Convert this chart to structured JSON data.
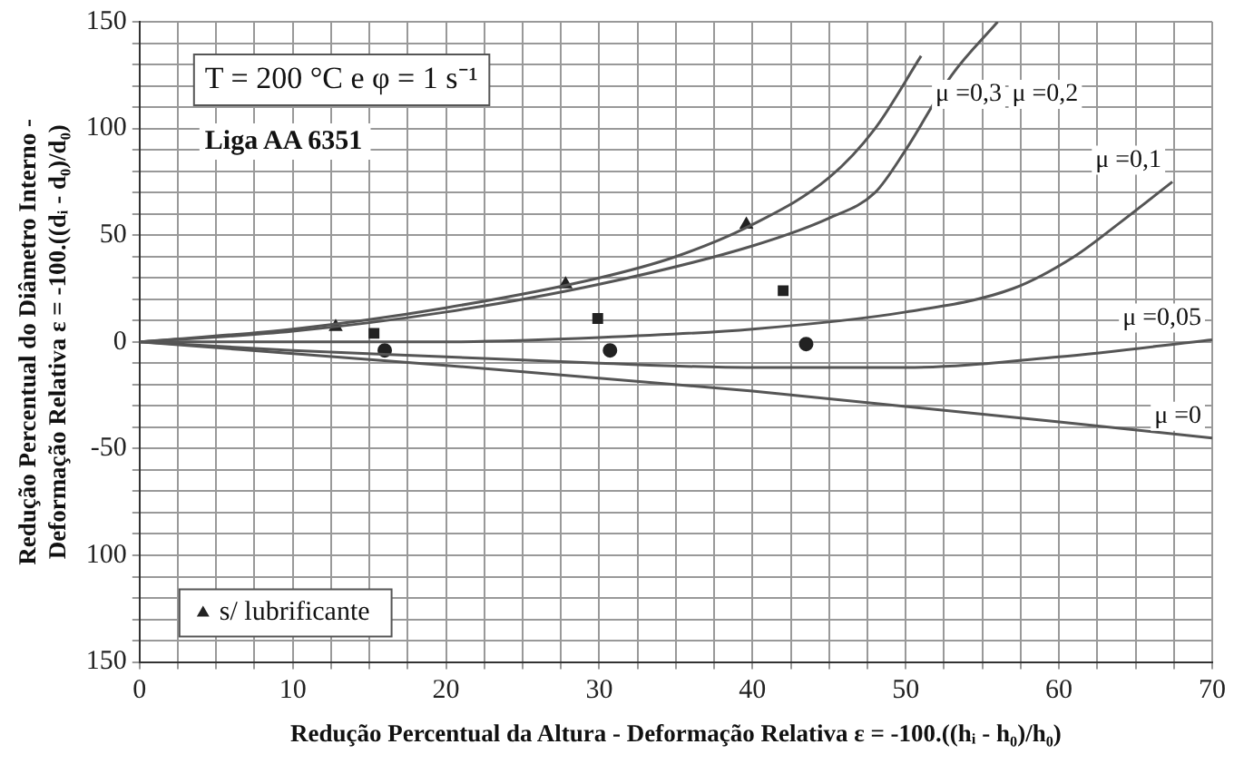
{
  "chart_data": {
    "type": "line",
    "xlabel": "Redução Percentual da Altura - Deformação Relativa ε = -100.((hᵢ - h₀)/h₀)",
    "ylabel": "Redução Percentual do Diâmetro Interno -\nDeformação Relativa ε = -100.((dᵢ - d₀)/d₀)",
    "annotations": [
      "T = 200 °C e φ = 1 s⁻¹",
      "Liga AA 6351"
    ],
    "series": [
      {
        "name": "μ =0,3",
        "color": "#555555",
        "x": [
          0,
          10,
          20,
          30,
          35,
          40,
          45,
          48,
          51
        ],
        "values": [
          0,
          6,
          16,
          30,
          40,
          55,
          77,
          100,
          134
        ]
      },
      {
        "name": "μ =0,2",
        "color": "#555555",
        "x": [
          0,
          10,
          20,
          30,
          40,
          45,
          48,
          50,
          53,
          56
        ],
        "values": [
          0,
          5,
          14,
          27,
          45,
          58,
          70,
          90,
          125,
          150
        ]
      },
      {
        "name": "μ =0,1",
        "color": "#555555",
        "x": [
          0,
          10,
          20,
          30,
          40,
          50,
          57,
          61,
          64,
          67.4
        ],
        "values": [
          0,
          0,
          0,
          2,
          6,
          14,
          25,
          40,
          56,
          75
        ]
      },
      {
        "name": "μ =0,05",
        "color": "#555555",
        "x": [
          0,
          10,
          20,
          30,
          40,
          50,
          60,
          70
        ],
        "values": [
          0,
          -4,
          -7,
          -10,
          -12,
          -12,
          -7,
          1
        ]
      },
      {
        "name": "μ =0",
        "color": "#555555",
        "x": [
          0,
          20,
          40,
          70
        ],
        "values": [
          0,
          -11,
          -23,
          -45
        ]
      },
      {
        "type": "scatter",
        "name": "s/ lubrificante",
        "marker": "triangle",
        "color": "#222222",
        "x": [
          12.8,
          27.8,
          39.6
        ],
        "values": [
          7,
          27,
          55
        ]
      },
      {
        "type": "scatter",
        "marker": "square",
        "color": "#222222",
        "x": [
          15.3,
          29.9,
          42
        ],
        "values": [
          4,
          11,
          24
        ]
      },
      {
        "type": "scatter",
        "marker": "circle",
        "color": "#222222",
        "x": [
          16,
          30.7,
          43.5
        ],
        "values": [
          -4,
          -4,
          -1
        ]
      }
    ],
    "xlim": [
      0,
      70
    ],
    "ylim": [
      -150,
      150
    ],
    "xticks": [
      0,
      {
        "value": 2.5,
        "label": null
      },
      {
        "value": 5,
        "label": null
      },
      {
        "value": 7.5,
        "label": null
      },
      10,
      {
        "value": 12.5,
        "label": null
      },
      {
        "value": 15,
        "label": null
      },
      {
        "value": 17.5,
        "label": null
      },
      20,
      {
        "value": 22.5,
        "label": null
      },
      {
        "value": 25,
        "label": null
      },
      {
        "value": 27.5,
        "label": null
      },
      30,
      {
        "value": 32.5,
        "label": null
      },
      {
        "value": 35,
        "label": null
      },
      {
        "value": 37.5,
        "label": null
      },
      40,
      {
        "value": 42.5,
        "label": null
      },
      {
        "value": 45,
        "label": null
      },
      {
        "value": 47.5,
        "label": null
      },
      50,
      {
        "value": 52.5,
        "label": null
      },
      {
        "value": 55,
        "label": null
      },
      {
        "value": 57.5,
        "label": null
      },
      60,
      {
        "value": 62.5,
        "label": null
      },
      {
        "value": 65,
        "label": null
      },
      {
        "value": 67.5,
        "label": null
      },
      70
    ],
    "yticks": [
      {
        "value": -150,
        "label": "150"
      },
      {
        "value": -140,
        "label": null
      },
      {
        "value": -130,
        "label": null
      },
      {
        "value": -120,
        "label": null
      },
      {
        "value": -110,
        "label": null
      },
      {
        "value": -100,
        "label": "100"
      },
      {
        "value": -90,
        "label": null
      },
      {
        "value": -80,
        "label": null
      },
      {
        "value": -70,
        "label": null
      },
      {
        "value": -60,
        "label": null
      },
      -50,
      {
        "value": -40,
        "label": null
      },
      {
        "value": -30,
        "label": null
      },
      {
        "value": -20,
        "label": null
      },
      {
        "value": -10,
        "label": null
      },
      0,
      {
        "value": 10,
        "label": null
      },
      {
        "value": 20,
        "label": null
      },
      {
        "value": 30,
        "label": null
      },
      {
        "value": 40,
        "label": null
      },
      50,
      {
        "value": 60,
        "label": null
      },
      {
        "value": 70,
        "label": null
      },
      {
        "value": 80,
        "label": null
      },
      {
        "value": 90,
        "label": null
      },
      100,
      {
        "value": 110,
        "label": null
      },
      {
        "value": 120,
        "label": null
      },
      {
        "value": 130,
        "label": null
      },
      {
        "value": 140,
        "label": null
      },
      150
    ],
    "grid": true,
    "legend": "bottom left"
  }
}
